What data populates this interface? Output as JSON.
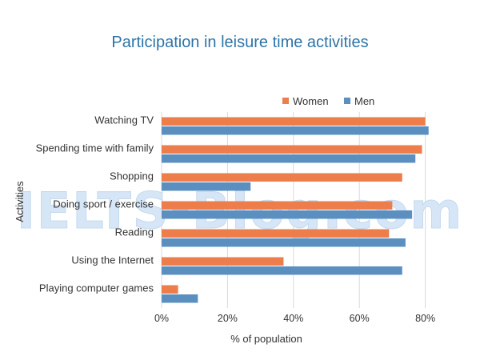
{
  "chart_data": {
    "type": "bar",
    "orientation": "horizontal",
    "title": "Participation in leisure time activities",
    "xlabel": "% of population",
    "ylabel": "Activities",
    "categories": [
      "Watching TV",
      "Spending time with family",
      "Shopping",
      "Doing sport / exercise",
      "Reading",
      "Using the Internet",
      "Playing computer games"
    ],
    "series": [
      {
        "name": "Women",
        "color": "#ed7d4b",
        "values": [
          80,
          79,
          73,
          70,
          69,
          37,
          5
        ]
      },
      {
        "name": "Men",
        "color": "#5b8fc0",
        "values": [
          81,
          77,
          27,
          76,
          74,
          73,
          11
        ]
      }
    ],
    "xlim": [
      0,
      90
    ],
    "xticks": [
      0,
      20,
      40,
      60,
      80
    ],
    "xtick_labels": [
      "0%",
      "20%",
      "40%",
      "60%",
      "80%"
    ],
    "grid": true,
    "legend_position": "top-right",
    "watermark": "IELTS-Blog.com"
  }
}
